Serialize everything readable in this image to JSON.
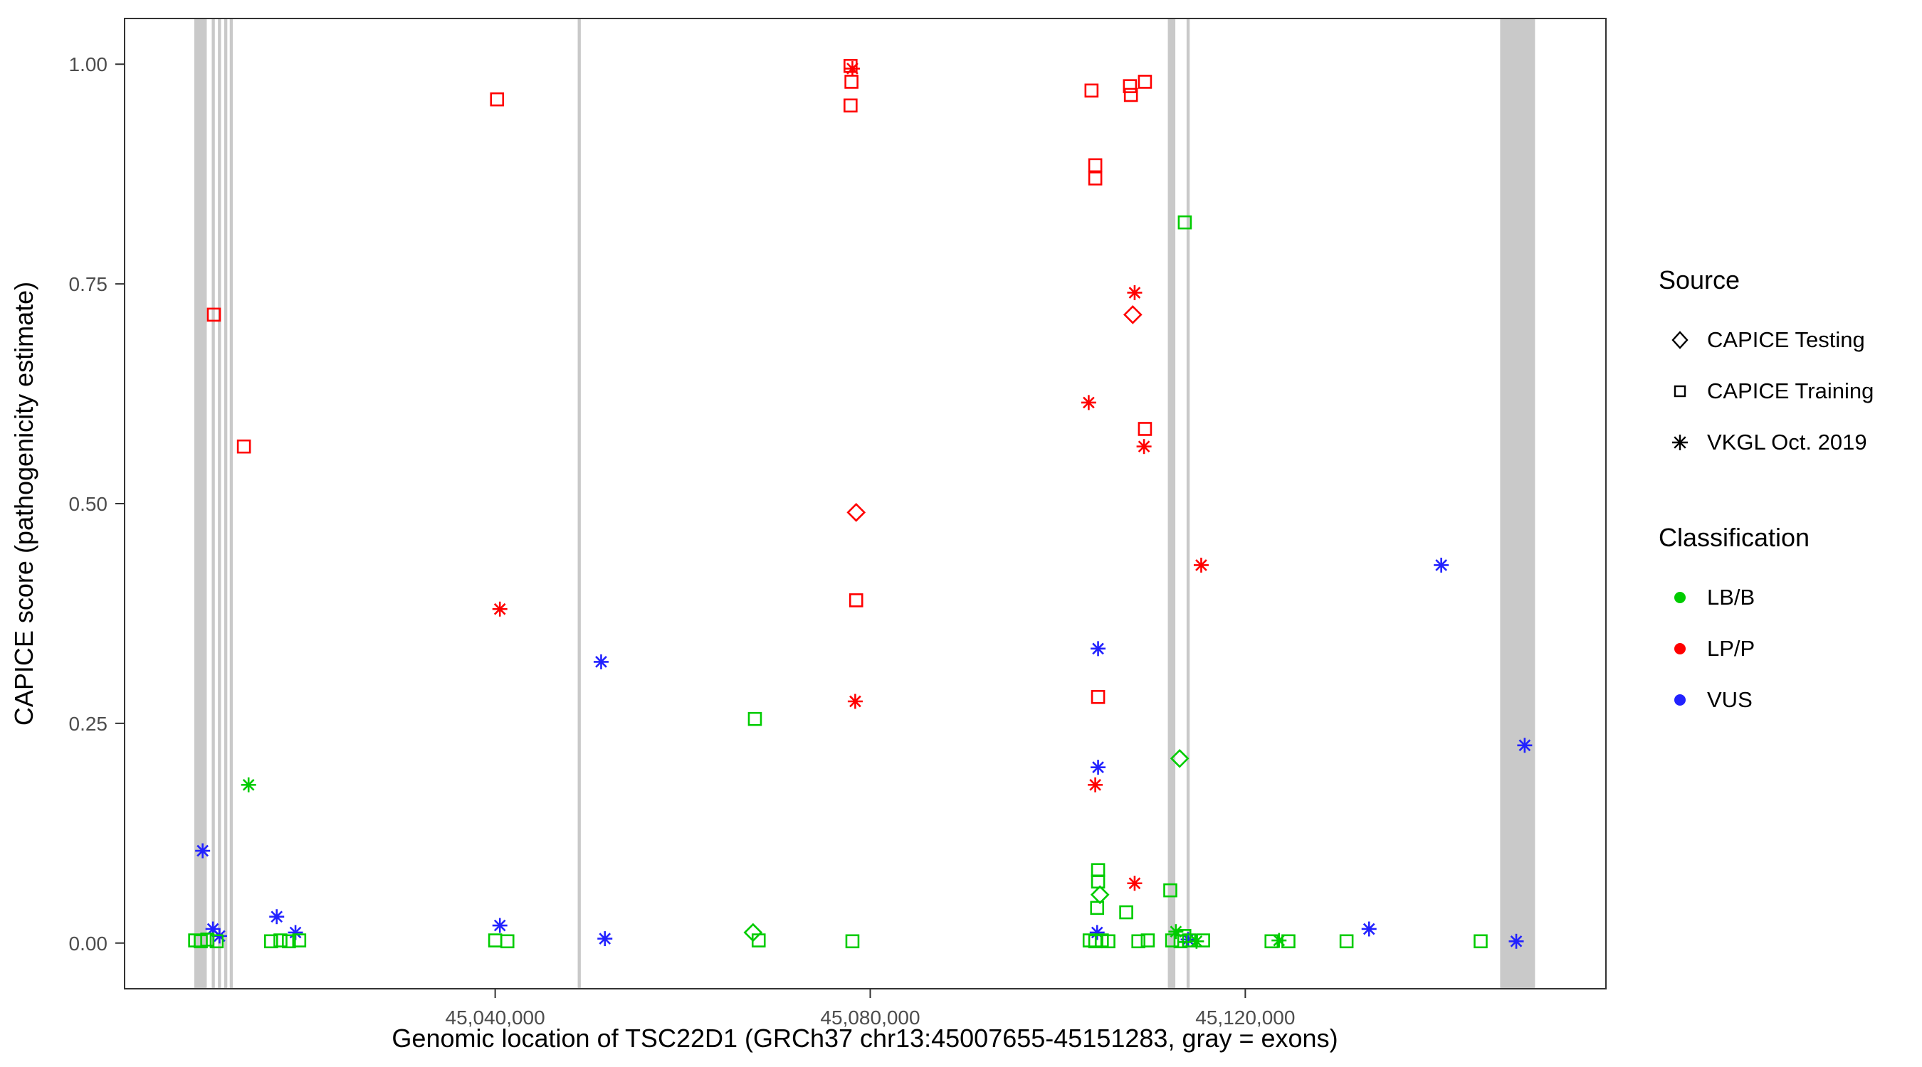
{
  "figure": {
    "xlabel": "Genomic location of TSC22D1 (GRCh37 chr13:45007655-45151283, gray = exons)",
    "ylabel": "CAPICE score (pathogenicity estimate)"
  },
  "legend": {
    "source": {
      "title": "Source",
      "items": [
        {
          "label": "CAPICE Testing",
          "shape": "diamond"
        },
        {
          "label": "CAPICE Training",
          "shape": "square"
        },
        {
          "label": "VKGL Oct. 2019",
          "shape": "asterisk"
        }
      ]
    },
    "classification": {
      "title": "Classification",
      "items": [
        {
          "label": "LB/B"
        },
        {
          "label": "LP/P"
        },
        {
          "label": "VUS"
        }
      ]
    }
  },
  "chart_data": {
    "type": "scatter",
    "title": "",
    "xlabel": "Genomic location of TSC22D1 (GRCh37 chr13:45007655-45151283, gray = exons)",
    "ylabel": "CAPICE score (pathogenicity estimate)",
    "xlim": [
      45000474,
      45158464
    ],
    "ylim": [
      -0.052,
      1.052
    ],
    "grid": false,
    "legend_position": "right",
    "x_ticks": [
      {
        "value": 45040000,
        "label": "45,040,000"
      },
      {
        "value": 45080000,
        "label": "45,080,000"
      },
      {
        "value": 45120000,
        "label": "45,120,000"
      }
    ],
    "y_ticks": [
      {
        "value": 0.0,
        "label": "0.00"
      },
      {
        "value": 0.25,
        "label": "0.25"
      },
      {
        "value": 0.5,
        "label": "0.50"
      },
      {
        "value": 0.75,
        "label": "0.75"
      },
      {
        "value": 1.0,
        "label": "1.00"
      }
    ],
    "colors": {
      "LB/B": "#00CC00",
      "LP/P": "#FF0000",
      "VUS": "#2222FF",
      "exon": "#c9c9c9"
    },
    "shape_map": {
      "CAPICE Testing": "diamond",
      "CAPICE Training": "square",
      "VKGL Oct. 2019": "asterisk"
    },
    "exons": [
      [
        45007910,
        45009240
      ],
      [
        45009770,
        45010100
      ],
      [
        45010430,
        45010760
      ],
      [
        45011100,
        45011430
      ],
      [
        45011690,
        45012020
      ],
      [
        45048800,
        45049130
      ],
      [
        45111740,
        45112540
      ],
      [
        45113740,
        45114070
      ],
      [
        45147180,
        45150900
      ]
    ],
    "points": [
      {
        "x": 45010000,
        "y": 0.715,
        "s": "square",
        "c": "LP/P"
      },
      {
        "x": 45013200,
        "y": 0.565,
        "s": "square",
        "c": "LP/P"
      },
      {
        "x": 45040200,
        "y": 0.96,
        "s": "square",
        "c": "LP/P"
      },
      {
        "x": 45040500,
        "y": 0.38,
        "s": "asterisk",
        "c": "LP/P"
      },
      {
        "x": 45077900,
        "y": 0.998,
        "s": "square",
        "c": "LP/P"
      },
      {
        "x": 45078100,
        "y": 0.995,
        "s": "asterisk",
        "c": "LP/P"
      },
      {
        "x": 45078000,
        "y": 0.98,
        "s": "square",
        "c": "LP/P"
      },
      {
        "x": 45077900,
        "y": 0.953,
        "s": "square",
        "c": "LP/P"
      },
      {
        "x": 45078500,
        "y": 0.49,
        "s": "diamond",
        "c": "LP/P"
      },
      {
        "x": 45078500,
        "y": 0.39,
        "s": "square",
        "c": "LP/P"
      },
      {
        "x": 45078400,
        "y": 0.275,
        "s": "asterisk",
        "c": "LP/P"
      },
      {
        "x": 45103600,
        "y": 0.97,
        "s": "square",
        "c": "LP/P"
      },
      {
        "x": 45104000,
        "y": 0.885,
        "s": "square",
        "c": "LP/P"
      },
      {
        "x": 45104000,
        "y": 0.87,
        "s": "square",
        "c": "LP/P"
      },
      {
        "x": 45103300,
        "y": 0.615,
        "s": "asterisk",
        "c": "LP/P"
      },
      {
        "x": 45104300,
        "y": 0.28,
        "s": "square",
        "c": "LP/P"
      },
      {
        "x": 45104000,
        "y": 0.18,
        "s": "asterisk",
        "c": "LP/P"
      },
      {
        "x": 45107700,
        "y": 0.975,
        "s": "square",
        "c": "LP/P"
      },
      {
        "x": 45107800,
        "y": 0.965,
        "s": "square",
        "c": "LP/P"
      },
      {
        "x": 45109300,
        "y": 0.98,
        "s": "square",
        "c": "LP/P"
      },
      {
        "x": 45108200,
        "y": 0.74,
        "s": "asterisk",
        "c": "LP/P"
      },
      {
        "x": 45108000,
        "y": 0.715,
        "s": "diamond",
        "c": "LP/P"
      },
      {
        "x": 45109300,
        "y": 0.585,
        "s": "square",
        "c": "LP/P"
      },
      {
        "x": 45109200,
        "y": 0.565,
        "s": "asterisk",
        "c": "LP/P"
      },
      {
        "x": 45108200,
        "y": 0.068,
        "s": "asterisk",
        "c": "LP/P"
      },
      {
        "x": 45115300,
        "y": 0.43,
        "s": "asterisk",
        "c": "LP/P"
      },
      {
        "x": 45008800,
        "y": 0.105,
        "s": "asterisk",
        "c": "VUS"
      },
      {
        "x": 45009900,
        "y": 0.016,
        "s": "asterisk",
        "c": "VUS"
      },
      {
        "x": 45010600,
        "y": 0.008,
        "s": "asterisk",
        "c": "VUS"
      },
      {
        "x": 45016700,
        "y": 0.03,
        "s": "asterisk",
        "c": "VUS"
      },
      {
        "x": 45018700,
        "y": 0.012,
        "s": "asterisk",
        "c": "VUS"
      },
      {
        "x": 45040500,
        "y": 0.02,
        "s": "asterisk",
        "c": "VUS"
      },
      {
        "x": 45051300,
        "y": 0.32,
        "s": "asterisk",
        "c": "VUS"
      },
      {
        "x": 45051700,
        "y": 0.005,
        "s": "asterisk",
        "c": "VUS"
      },
      {
        "x": 45104300,
        "y": 0.335,
        "s": "asterisk",
        "c": "VUS"
      },
      {
        "x": 45104300,
        "y": 0.2,
        "s": "asterisk",
        "c": "VUS"
      },
      {
        "x": 45104200,
        "y": 0.012,
        "s": "asterisk",
        "c": "VUS"
      },
      {
        "x": 45113900,
        "y": 0.004,
        "s": "asterisk",
        "c": "VUS"
      },
      {
        "x": 45133200,
        "y": 0.016,
        "s": "asterisk",
        "c": "VUS"
      },
      {
        "x": 45140900,
        "y": 0.43,
        "s": "asterisk",
        "c": "VUS"
      },
      {
        "x": 45149800,
        "y": 0.225,
        "s": "asterisk",
        "c": "VUS"
      },
      {
        "x": 45148900,
        "y": 0.002,
        "s": "asterisk",
        "c": "VUS"
      },
      {
        "x": 45013700,
        "y": 0.18,
        "s": "asterisk",
        "c": "LB/B"
      },
      {
        "x": 45008000,
        "y": 0.003,
        "s": "square",
        "c": "LB/B"
      },
      {
        "x": 45008600,
        "y": 0.002,
        "s": "square",
        "c": "LB/B"
      },
      {
        "x": 45009300,
        "y": 0.004,
        "s": "square",
        "c": "LB/B"
      },
      {
        "x": 45010300,
        "y": 0.002,
        "s": "square",
        "c": "LB/B"
      },
      {
        "x": 45016100,
        "y": 0.002,
        "s": "square",
        "c": "LB/B"
      },
      {
        "x": 45017100,
        "y": 0.003,
        "s": "square",
        "c": "LB/B"
      },
      {
        "x": 45018000,
        "y": 0.002,
        "s": "square",
        "c": "LB/B"
      },
      {
        "x": 45019100,
        "y": 0.003,
        "s": "square",
        "c": "LB/B"
      },
      {
        "x": 45040000,
        "y": 0.003,
        "s": "square",
        "c": "LB/B"
      },
      {
        "x": 45041300,
        "y": 0.002,
        "s": "square",
        "c": "LB/B"
      },
      {
        "x": 45067700,
        "y": 0.255,
        "s": "square",
        "c": "LB/B"
      },
      {
        "x": 45067500,
        "y": 0.012,
        "s": "diamond",
        "c": "LB/B"
      },
      {
        "x": 45068100,
        "y": 0.003,
        "s": "square",
        "c": "LB/B"
      },
      {
        "x": 45078100,
        "y": 0.002,
        "s": "square",
        "c": "LB/B"
      },
      {
        "x": 45104300,
        "y": 0.083,
        "s": "square",
        "c": "LB/B"
      },
      {
        "x": 45104300,
        "y": 0.07,
        "s": "square",
        "c": "LB/B"
      },
      {
        "x": 45104500,
        "y": 0.055,
        "s": "diamond",
        "c": "LB/B"
      },
      {
        "x": 45104200,
        "y": 0.04,
        "s": "square",
        "c": "LB/B"
      },
      {
        "x": 45103400,
        "y": 0.003,
        "s": "square",
        "c": "LB/B"
      },
      {
        "x": 45104000,
        "y": 0.002,
        "s": "square",
        "c": "LB/B"
      },
      {
        "x": 45104700,
        "y": 0.003,
        "s": "square",
        "c": "LB/B"
      },
      {
        "x": 45105400,
        "y": 0.002,
        "s": "square",
        "c": "LB/B"
      },
      {
        "x": 45107300,
        "y": 0.035,
        "s": "square",
        "c": "LB/B"
      },
      {
        "x": 45108600,
        "y": 0.002,
        "s": "square",
        "c": "LB/B"
      },
      {
        "x": 45109600,
        "y": 0.003,
        "s": "square",
        "c": "LB/B"
      },
      {
        "x": 45113550,
        "y": 0.82,
        "s": "square",
        "c": "LB/B"
      },
      {
        "x": 45113000,
        "y": 0.21,
        "s": "diamond",
        "c": "LB/B"
      },
      {
        "x": 45112000,
        "y": 0.06,
        "s": "square",
        "c": "LB/B"
      },
      {
        "x": 45112600,
        "y": 0.013,
        "s": "asterisk",
        "c": "LB/B"
      },
      {
        "x": 45113500,
        "y": 0.008,
        "s": "square",
        "c": "LB/B"
      },
      {
        "x": 45112200,
        "y": 0.003,
        "s": "square",
        "c": "LB/B"
      },
      {
        "x": 45113100,
        "y": 0.002,
        "s": "square",
        "c": "LB/B"
      },
      {
        "x": 45114000,
        "y": 0.003,
        "s": "square",
        "c": "LB/B"
      },
      {
        "x": 45114800,
        "y": 0.002,
        "s": "asterisk",
        "c": "LB/B"
      },
      {
        "x": 45115500,
        "y": 0.003,
        "s": "square",
        "c": "LB/B"
      },
      {
        "x": 45122800,
        "y": 0.002,
        "s": "square",
        "c": "LB/B"
      },
      {
        "x": 45123600,
        "y": 0.003,
        "s": "asterisk",
        "c": "LB/B"
      },
      {
        "x": 45124600,
        "y": 0.002,
        "s": "square",
        "c": "LB/B"
      },
      {
        "x": 45130800,
        "y": 0.002,
        "s": "square",
        "c": "LB/B"
      },
      {
        "x": 45145100,
        "y": 0.002,
        "s": "square",
        "c": "LB/B"
      }
    ]
  }
}
